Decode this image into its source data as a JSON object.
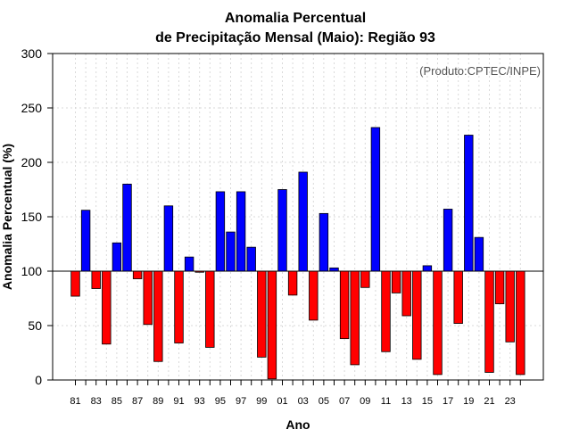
{
  "chart_data": {
    "type": "bar",
    "title": "Anomalia Percentual",
    "subtitle": "de Precipitação Mensal (Maio): Região 93",
    "xlabel": "Ano",
    "ylabel": "Anomalia Percentual (%)",
    "credit": "(Produto:CPTEC/INPE)",
    "baseline": 100,
    "ylim": [
      0,
      300
    ],
    "yticks": [
      "0",
      "50",
      "100",
      "150",
      "200",
      "250",
      "300"
    ],
    "grid": true,
    "colors": {
      "above": "#0000ff",
      "below": "#ff0000",
      "edge": "#000000",
      "baseline": "#000000"
    },
    "categories": [
      "81",
      "82",
      "83",
      "84",
      "85",
      "86",
      "87",
      "88",
      "89",
      "90",
      "91",
      "92",
      "93",
      "94",
      "95",
      "96",
      "97",
      "98",
      "99",
      "00",
      "01",
      "02",
      "03",
      "04",
      "05",
      "06",
      "07",
      "08",
      "09",
      "10",
      "11",
      "12",
      "13",
      "14",
      "15",
      "16",
      "17",
      "18",
      "19",
      "20",
      "21",
      "22",
      "23",
      "24"
    ],
    "xtick_labels": [
      "81",
      "83",
      "85",
      "87",
      "89",
      "91",
      "93",
      "95",
      "97",
      "99",
      "01",
      "03",
      "05",
      "07",
      "09",
      "11",
      "13",
      "15",
      "17",
      "19",
      "21",
      "23"
    ],
    "values": [
      77,
      156,
      84,
      33,
      126,
      180,
      93,
      51,
      17,
      160,
      34,
      113,
      99,
      30,
      173,
      136,
      173,
      122,
      21,
      1,
      175,
      78,
      191,
      55,
      153,
      103,
      38,
      14,
      85,
      232,
      26,
      80,
      59,
      19,
      105,
      5,
      157,
      52,
      225,
      131,
      7,
      70,
      35,
      5
    ]
  }
}
